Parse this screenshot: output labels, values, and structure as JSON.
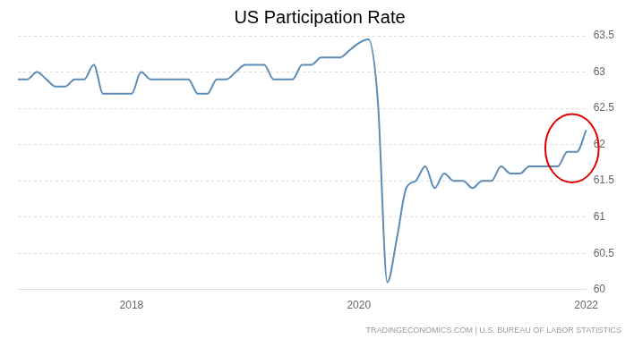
{
  "chart_data": {
    "type": "line",
    "title": "US Participation Rate",
    "source": "TRADINGECONOMICS.COM | U.S. BUREAU OF LABOR STATISTICS",
    "categories": [
      null,
      null,
      null,
      null,
      null,
      null,
      null,
      null,
      null,
      null,
      null,
      null,
      "2018",
      null,
      null,
      null,
      null,
      null,
      null,
      null,
      null,
      null,
      null,
      null,
      null,
      null,
      null,
      null,
      null,
      null,
      null,
      null,
      null,
      null,
      null,
      null,
      "2020",
      null,
      null,
      null,
      null,
      null,
      null,
      null,
      null,
      null,
      null,
      null,
      null,
      null,
      null,
      null,
      null,
      null,
      null,
      null,
      null,
      null,
      null,
      null,
      "2022"
    ],
    "values": [
      62.9,
      62.9,
      63.0,
      62.9,
      62.8,
      62.8,
      62.9,
      62.9,
      63.1,
      62.7,
      62.7,
      62.7,
      62.7,
      63.0,
      62.9,
      62.9,
      62.9,
      62.9,
      62.9,
      62.7,
      62.7,
      62.9,
      62.9,
      63.0,
      63.1,
      63.1,
      63.1,
      62.9,
      62.9,
      62.9,
      63.1,
      63.1,
      63.2,
      63.2,
      63.2,
      63.3,
      63.4,
      63.45,
      62.6,
      60.1,
      60.7,
      61.4,
      61.5,
      61.7,
      61.4,
      61.6,
      61.5,
      61.5,
      61.4,
      61.5,
      61.5,
      61.7,
      61.6,
      61.6,
      61.7,
      61.7,
      61.7,
      61.7,
      61.9,
      61.9,
      62.2
    ],
    "color": "#5b8db8",
    "ylim": [
      60,
      63.5
    ],
    "yticks": [
      60,
      60.5,
      61,
      61.5,
      62,
      62.5,
      63,
      63.5
    ],
    "grid": true
  }
}
